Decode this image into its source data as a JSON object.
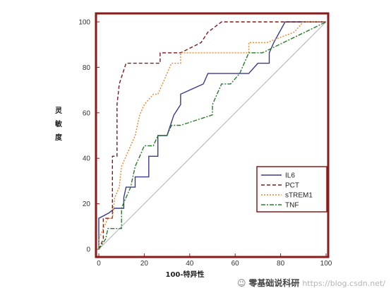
{
  "chart_data": {
    "type": "line",
    "xlabel": "100-特异性",
    "ylabel": "灵敏度",
    "xlim": [
      0,
      100
    ],
    "ylim": [
      0,
      100
    ],
    "xticks": [
      0,
      20,
      40,
      60,
      80,
      100
    ],
    "yticks": [
      0,
      20,
      40,
      60,
      80,
      100
    ],
    "legend_position": "bottom-right",
    "reference_line": [
      [
        0,
        0
      ],
      [
        100,
        100
      ]
    ],
    "series": [
      {
        "name": "IL6",
        "color": "#3a3a8c",
        "dash": "solid",
        "points": [
          [
            0,
            0
          ],
          [
            0,
            13.6
          ],
          [
            4.5,
            16
          ],
          [
            7,
            18
          ],
          [
            11,
            18
          ],
          [
            11,
            22.7
          ],
          [
            12,
            27.3
          ],
          [
            16,
            27.3
          ],
          [
            16,
            31.8
          ],
          [
            20,
            31.8
          ],
          [
            22,
            31.8
          ],
          [
            22,
            40.9
          ],
          [
            26,
            40.9
          ],
          [
            26,
            50
          ],
          [
            30,
            50
          ],
          [
            33,
            59
          ],
          [
            36,
            63.6
          ],
          [
            36,
            68.2
          ],
          [
            46,
            72.7
          ],
          [
            48,
            77.3
          ],
          [
            62,
            77.3
          ],
          [
            66,
            77.3
          ],
          [
            70,
            81.8
          ],
          [
            75,
            81.8
          ],
          [
            75,
            86.4
          ],
          [
            77,
            90.9
          ],
          [
            82,
            100
          ],
          [
            100,
            100
          ]
        ]
      },
      {
        "name": "PCT",
        "color": "#7a1a1a",
        "dash": "5,3",
        "points": [
          [
            0,
            0
          ],
          [
            2,
            4.5
          ],
          [
            2,
            13.6
          ],
          [
            6,
            13.6
          ],
          [
            6,
            40.9
          ],
          [
            8,
            40.9
          ],
          [
            8,
            63.6
          ],
          [
            9,
            72.7
          ],
          [
            12,
            81.8
          ],
          [
            27,
            81.8
          ],
          [
            27,
            86.4
          ],
          [
            36,
            86.4
          ],
          [
            45,
            90.9
          ],
          [
            48,
            95.5
          ],
          [
            54,
            100
          ],
          [
            100,
            100
          ]
        ]
      },
      {
        "name": "sTREM1",
        "color": "#e8862a",
        "dash": "2,2",
        "points": [
          [
            0,
            0
          ],
          [
            0,
            4.5
          ],
          [
            2,
            9.1
          ],
          [
            4,
            13.6
          ],
          [
            6,
            13.6
          ],
          [
            7,
            22.7
          ],
          [
            9,
            27.3
          ],
          [
            10,
            36.4
          ],
          [
            12,
            40.9
          ],
          [
            14,
            45.5
          ],
          [
            16,
            50
          ],
          [
            18,
            59.1
          ],
          [
            20,
            63.6
          ],
          [
            24,
            68.2
          ],
          [
            26,
            68.2
          ],
          [
            28,
            72.7
          ],
          [
            30,
            77.3
          ],
          [
            32,
            81.8
          ],
          [
            36,
            81.8
          ],
          [
            36,
            86.4
          ],
          [
            40,
            86.4
          ],
          [
            66,
            86.4
          ],
          [
            66,
            90.9
          ],
          [
            74,
            90.9
          ],
          [
            86,
            95.5
          ],
          [
            90,
            100
          ],
          [
            100,
            100
          ]
        ]
      },
      {
        "name": "TNF",
        "color": "#2a7a2a",
        "dash": "6,2,2,2",
        "points": [
          [
            0,
            0
          ],
          [
            3,
            4.5
          ],
          [
            4,
            9.1
          ],
          [
            10,
            9.1
          ],
          [
            10,
            18.2
          ],
          [
            12,
            22.7
          ],
          [
            14,
            27.3
          ],
          [
            16,
            36.4
          ],
          [
            18,
            40.9
          ],
          [
            20,
            45.5
          ],
          [
            24,
            45.5
          ],
          [
            26,
            50
          ],
          [
            30,
            50
          ],
          [
            32,
            54.5
          ],
          [
            36,
            54.5
          ],
          [
            50,
            59.1
          ],
          [
            50,
            63.6
          ],
          [
            54,
            72.7
          ],
          [
            58,
            72.7
          ],
          [
            62,
            77.3
          ],
          [
            66,
            86.4
          ],
          [
            72,
            86.4
          ],
          [
            100,
            100
          ]
        ]
      }
    ]
  },
  "watermark": {
    "brand": "零基础说科研",
    "url": "https://blog.csdn.net/"
  }
}
